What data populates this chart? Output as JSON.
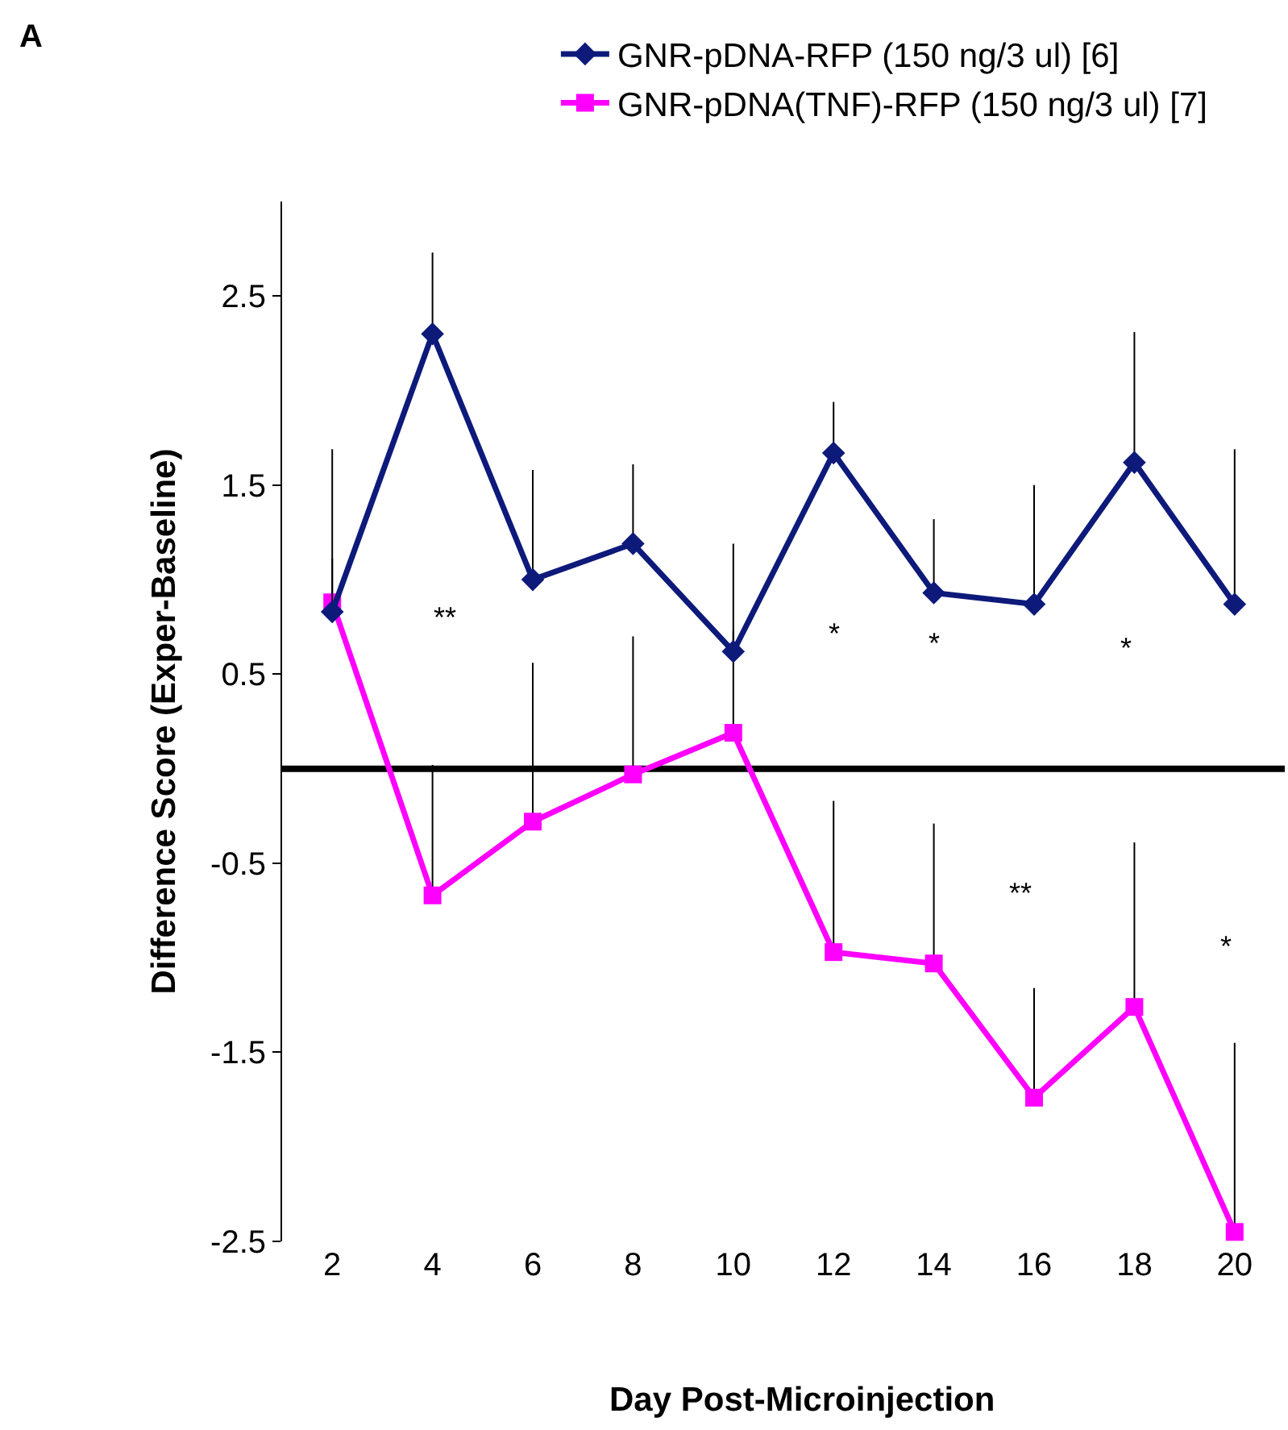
{
  "chart_data": {
    "type": "line",
    "xlabel": "Day Post-Microinjection",
    "ylabel": "Difference Score (Exper-Baseline)",
    "x": [
      2,
      4,
      6,
      8,
      10,
      12,
      14,
      16,
      18,
      20
    ],
    "xlim": [
      1,
      21
    ],
    "xticks": [
      2,
      4,
      6,
      8,
      10,
      12,
      14,
      16,
      18,
      20
    ],
    "ylim": [
      -2.5,
      3.0
    ],
    "yticks": [
      -2.5,
      -1.5,
      -0.5,
      0.5,
      1.5,
      2.5
    ],
    "grid": false,
    "legend": "top",
    "line_style": "solid",
    "series": [
      {
        "name": "GNR-pDNA-RFP (150 ng/3 ul) [6]",
        "color": "#0d1a7a",
        "marker": "diamond",
        "values": [
          0.83,
          2.3,
          1.0,
          1.19,
          0.62,
          1.67,
          0.93,
          0.87,
          1.62,
          0.87
        ],
        "errors": [
          [
            0.83,
            1.69
          ],
          [
            2.3,
            2.73
          ],
          [
            1.0,
            1.58
          ],
          [
            1.19,
            1.61
          ],
          [
            0.62,
            1.19
          ],
          [
            1.67,
            1.94
          ],
          [
            0.93,
            1.32
          ],
          [
            0.87,
            1.5
          ],
          [
            1.62,
            2.31
          ],
          [
            0.87,
            1.69
          ]
        ]
      },
      {
        "name": "GNR-pDNA(TNF)-RFP (150 ng/3 ul) [7]",
        "color": "#ff00ff",
        "marker": "square",
        "values": [
          0.88,
          -0.67,
          -0.28,
          -0.03,
          0.19,
          -0.97,
          -1.03,
          -1.74,
          -1.26,
          -2.45
        ],
        "errors": [
          [
            0.88,
            1.11
          ],
          [
            -0.67,
            0.02
          ],
          [
            -0.28,
            0.56
          ],
          [
            -0.03,
            0.7
          ],
          [
            0.19,
            0.73
          ],
          [
            -0.97,
            -0.17
          ],
          [
            -1.03,
            -0.29
          ],
          [
            -1.74,
            -1.16
          ],
          [
            -1.26,
            -0.39
          ],
          [
            -2.45,
            -1.45
          ]
        ]
      }
    ],
    "ref_lines": [
      {
        "axis": "y",
        "value": 0,
        "color": "#000000"
      }
    ],
    "annotations": [
      "A",
      "**",
      "*",
      "*",
      "*",
      "**",
      "*"
    ]
  }
}
